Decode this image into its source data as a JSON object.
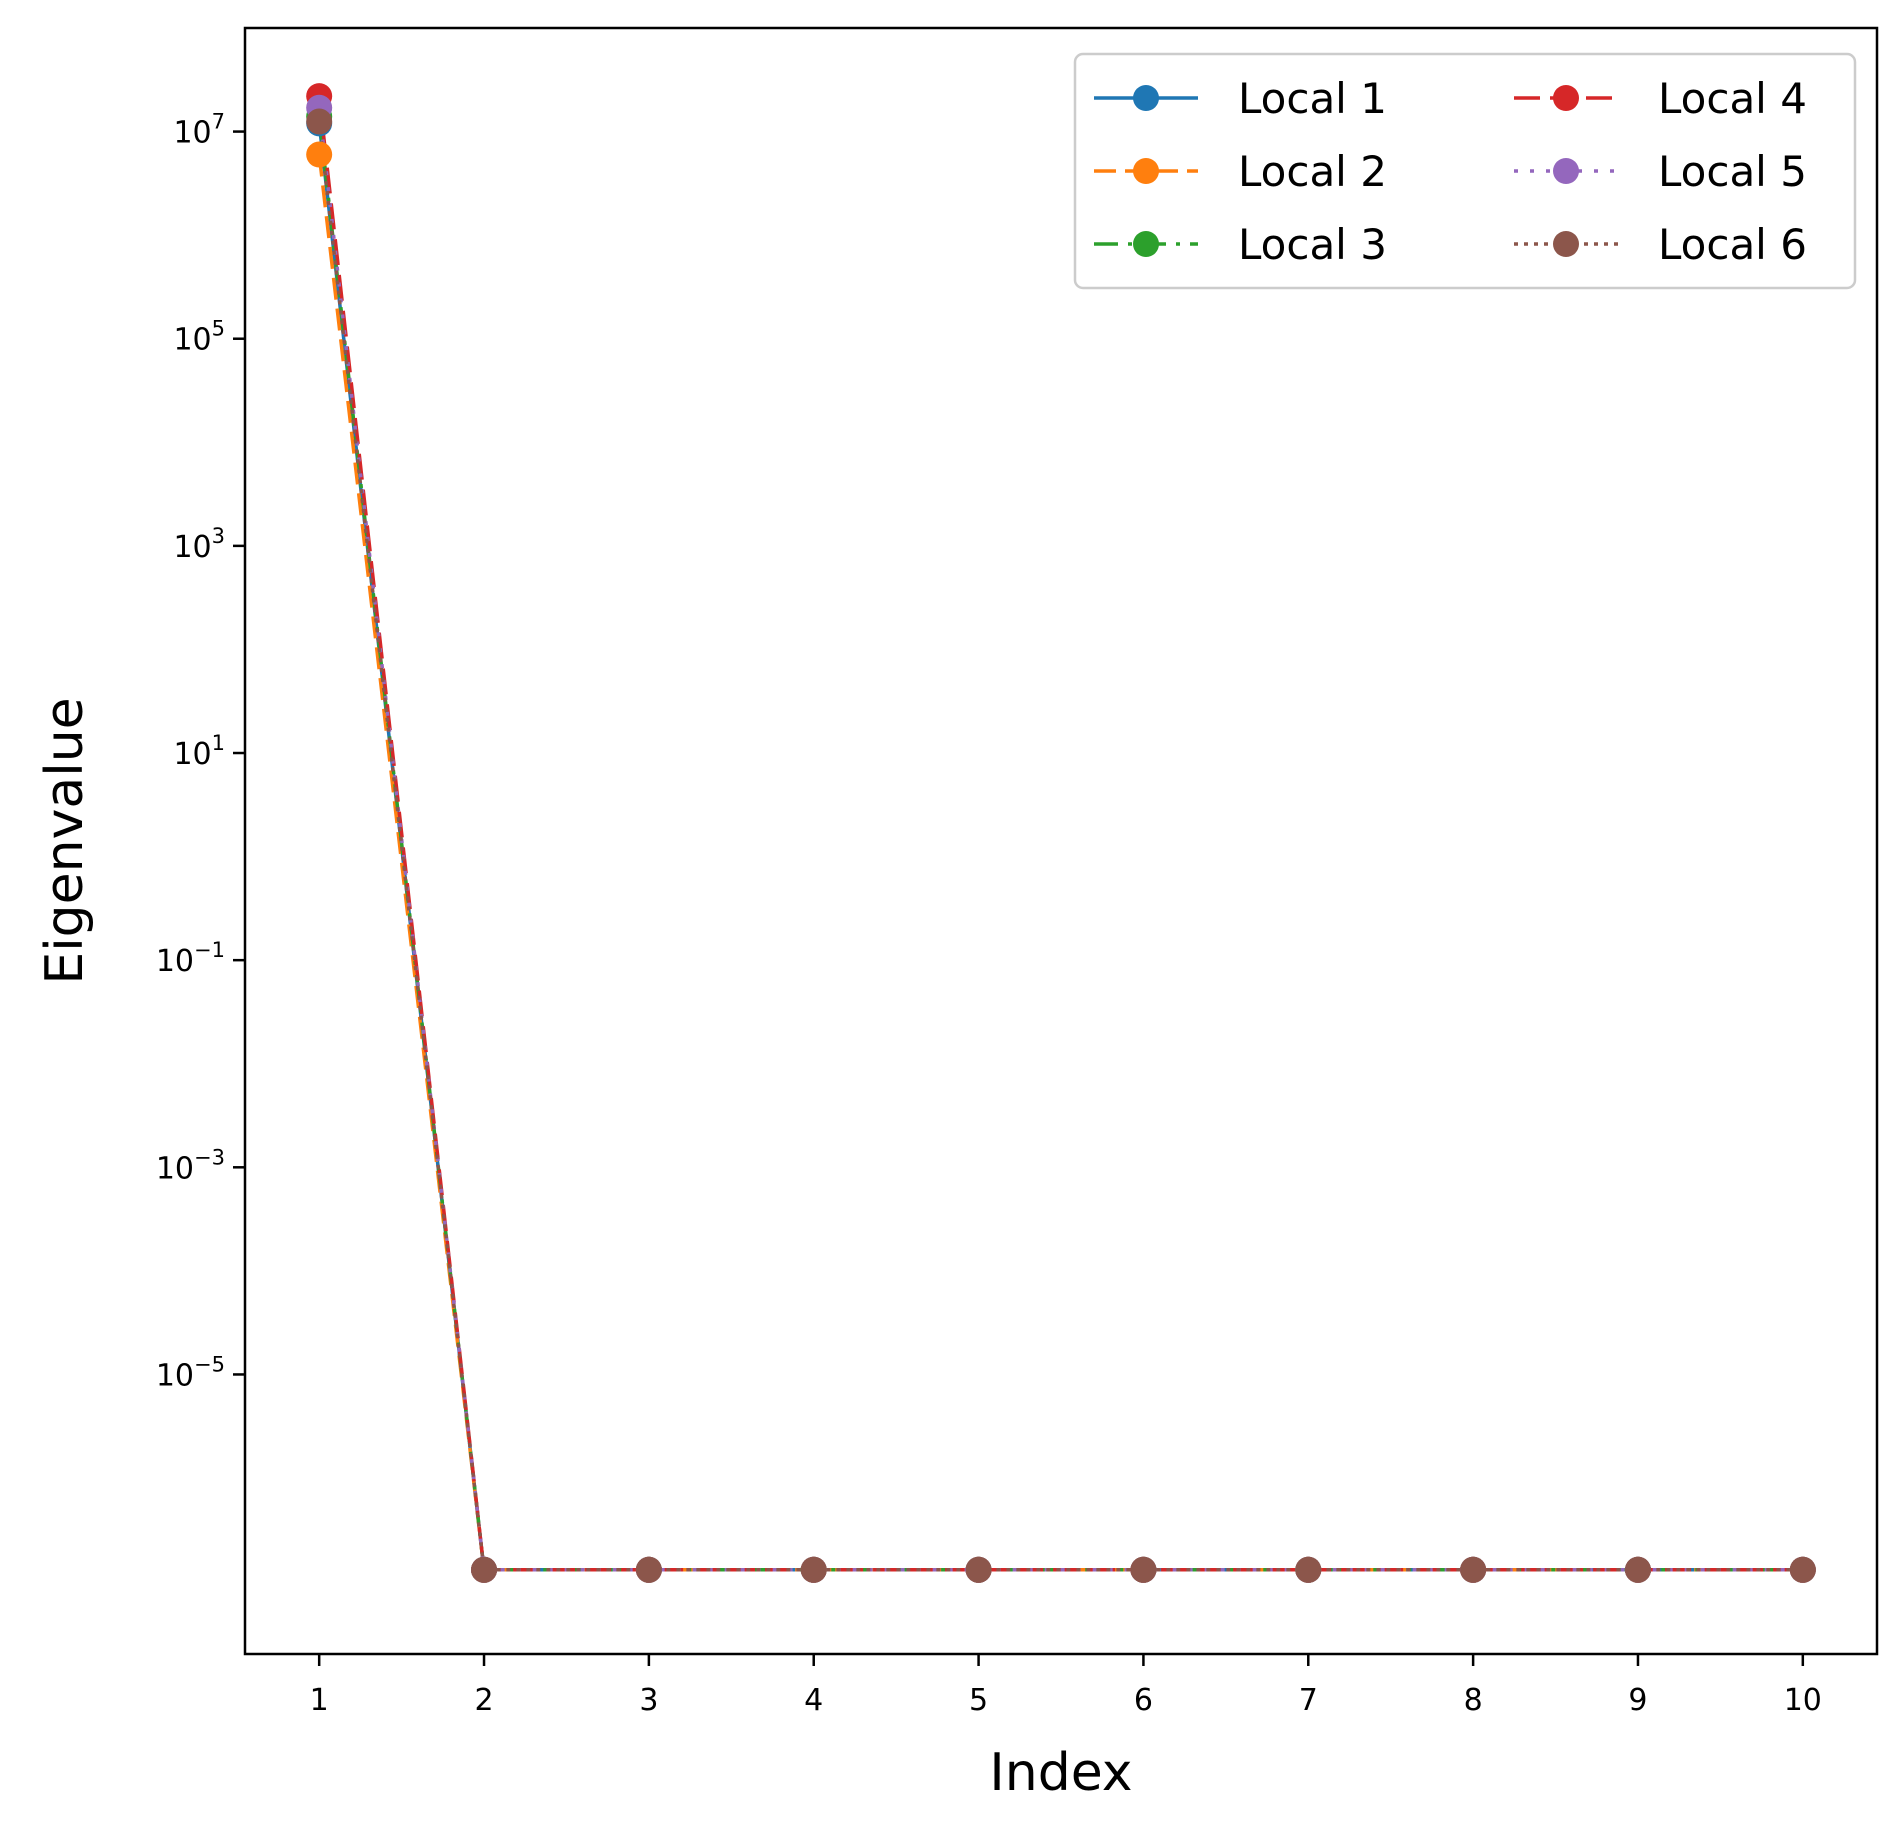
{
  "chart_data": {
    "type": "line",
    "title": "",
    "xlabel": "Index",
    "ylabel": "Eigenvalue",
    "y_scale": "log",
    "x": [
      1,
      2,
      3,
      4,
      5,
      6,
      7,
      8,
      9,
      10
    ],
    "xticks": [
      "1",
      "2",
      "3",
      "4",
      "5",
      "6",
      "7",
      "8",
      "9",
      "10"
    ],
    "xlim": [
      0.55,
      10.45
    ],
    "ylim": [
      2e-08,
      100000000
    ],
    "yticks": [
      {
        "value": 10000000,
        "base": "10",
        "exp": "7"
      },
      {
        "value": 100000,
        "base": "10",
        "exp": "5"
      },
      {
        "value": 1000,
        "base": "10",
        "exp": "3"
      },
      {
        "value": 10,
        "base": "10",
        "exp": "1"
      },
      {
        "value": 0.1,
        "base": "10",
        "exp": "−1"
      },
      {
        "value": 0.001,
        "base": "10",
        "exp": "−3"
      },
      {
        "value": 1e-05,
        "base": "10",
        "exp": "−5"
      }
    ],
    "grid": false,
    "legend_position": "top-right",
    "legend_columns": 2,
    "series": [
      {
        "name": "Local 1",
        "color": "#1f77b4",
        "linestyle": "solid",
        "values": [
          12000000,
          1.3e-07,
          1.3e-07,
          1.3e-07,
          1.3e-07,
          1.3e-07,
          1.3e-07,
          1.3e-07,
          1.3e-07,
          1.3e-07
        ]
      },
      {
        "name": "Local 2",
        "color": "#ff7f0e",
        "linestyle": "dashed",
        "values": [
          6000000,
          1.3e-07,
          1.3e-07,
          1.3e-07,
          1.3e-07,
          1.3e-07,
          1.3e-07,
          1.3e-07,
          1.3e-07,
          1.3e-07
        ]
      },
      {
        "name": "Local 3",
        "color": "#2ca02c",
        "linestyle": "dashdot",
        "values": [
          14000000,
          1.3e-07,
          1.3e-07,
          1.3e-07,
          1.3e-07,
          1.3e-07,
          1.3e-07,
          1.3e-07,
          1.3e-07,
          1.3e-07
        ]
      },
      {
        "name": "Local 4",
        "color": "#d62728",
        "linestyle": "longdash",
        "values": [
          22000000,
          1.3e-07,
          1.3e-07,
          1.3e-07,
          1.3e-07,
          1.3e-07,
          1.3e-07,
          1.3e-07,
          1.3e-07,
          1.3e-07
        ]
      },
      {
        "name": "Local 5",
        "color": "#9467bd",
        "linestyle": "densedot",
        "values": [
          17000000,
          1.3e-07,
          1.3e-07,
          1.3e-07,
          1.3e-07,
          1.3e-07,
          1.3e-07,
          1.3e-07,
          1.3e-07,
          1.3e-07
        ]
      },
      {
        "name": "Local 6",
        "color": "#8c564b",
        "linestyle": "dotted",
        "values": [
          12500000,
          1.3e-07,
          1.3e-07,
          1.3e-07,
          1.3e-07,
          1.3e-07,
          1.3e-07,
          1.3e-07,
          1.3e-07,
          1.3e-07
        ]
      }
    ]
  }
}
